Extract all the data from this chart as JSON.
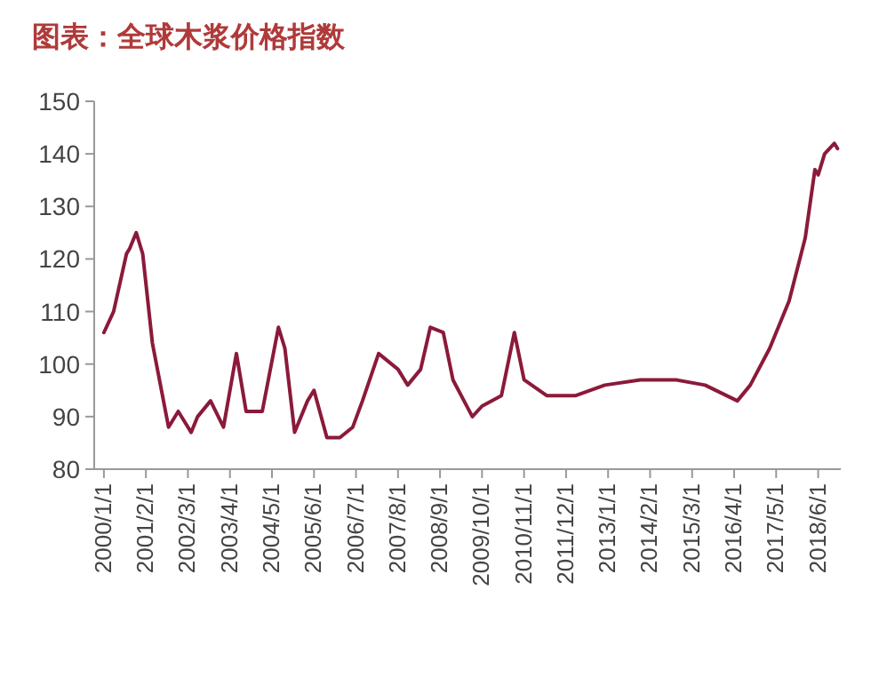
{
  "chart_data": {
    "type": "line",
    "title": "图表：全球木浆价格指数",
    "xlim": [
      "1999-10",
      "2019-01"
    ],
    "ylim": [
      80,
      150
    ],
    "yticks": [
      80,
      90,
      100,
      110,
      120,
      130,
      140,
      150
    ],
    "xticks": [
      {
        "value": "2000-01",
        "label": "2000/1/1"
      },
      {
        "value": "2001-02",
        "label": "2001/2/1"
      },
      {
        "value": "2002-03",
        "label": "2002/3/1"
      },
      {
        "value": "2003-04",
        "label": "2003/4/1"
      },
      {
        "value": "2004-05",
        "label": "2004/5/1"
      },
      {
        "value": "2005-06",
        "label": "2005/6/1"
      },
      {
        "value": "2006-07",
        "label": "2006/7/1"
      },
      {
        "value": "2007-08",
        "label": "2007/8/1"
      },
      {
        "value": "2008-09",
        "label": "2008/9/1"
      },
      {
        "value": "2009-10",
        "label": "2009/10/1"
      },
      {
        "value": "2010-11",
        "label": "2010/11/1"
      },
      {
        "value": "2011-12",
        "label": "2011/12/1"
      },
      {
        "value": "2013-01",
        "label": "2013/1/1"
      },
      {
        "value": "2014-02",
        "label": "2014/2/1"
      },
      {
        "value": "2015-03",
        "label": "2015/3/1"
      },
      {
        "value": "2016-04",
        "label": "2016/4/1"
      },
      {
        "value": "2017-05",
        "label": "2017/5/1"
      },
      {
        "value": "2018-06",
        "label": "2018/6/1"
      }
    ],
    "series": [
      {
        "color": "#8b1a3a",
        "x": [
          "2000-01",
          "2000-04",
          "2000-08",
          "2000-09",
          "2000-11",
          "2001-01",
          "2001-04",
          "2001-09",
          "2001-12",
          "2002-02",
          "2002-04",
          "2002-06",
          "2002-10",
          "2003-02",
          "2003-06",
          "2003-09",
          "2004-02",
          "2004-07",
          "2004-09",
          "2004-12",
          "2005-04",
          "2005-06",
          "2005-10",
          "2006-02",
          "2006-06",
          "2006-09",
          "2007-02",
          "2007-08",
          "2007-11",
          "2008-03",
          "2008-06",
          "2008-10",
          "2009-01",
          "2009-07",
          "2009-10",
          "2010-04",
          "2010-08",
          "2010-11",
          "2011-06",
          "2012-03",
          "2012-12",
          "2013-11",
          "2014-10",
          "2015-07",
          "2016-05",
          "2016-09",
          "2017-03",
          "2017-09",
          "2018-02",
          "2018-05",
          "2018-06",
          "2018-08",
          "2018-11",
          "2018-12"
        ],
        "values": [
          106,
          110,
          121,
          122,
          125,
          121,
          104,
          88,
          91,
          89,
          87,
          90,
          93,
          88,
          102,
          91,
          91,
          107,
          103,
          87,
          93,
          95,
          86,
          86,
          88,
          93,
          102,
          99,
          96,
          99,
          107,
          106,
          97,
          90,
          92,
          94,
          106,
          97,
          94,
          94,
          96,
          97,
          97,
          96,
          93,
          96,
          103,
          112,
          124,
          137,
          136,
          140,
          142,
          141
        ]
      }
    ]
  }
}
